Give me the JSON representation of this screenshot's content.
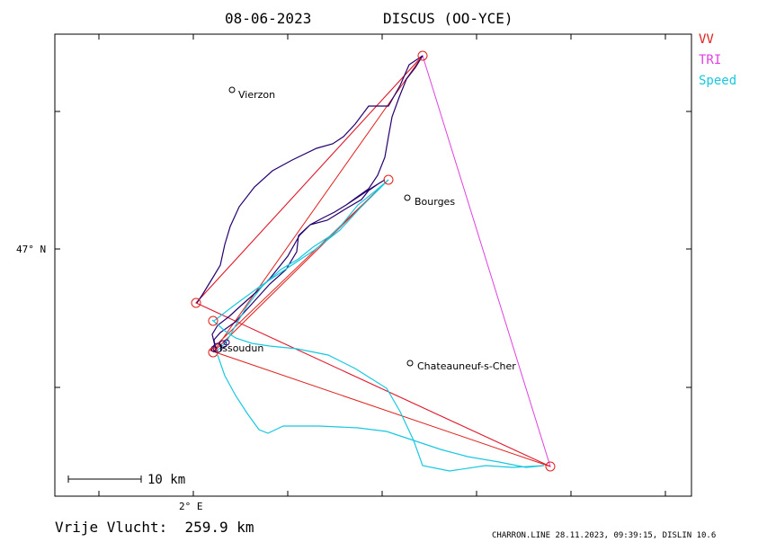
{
  "header": {
    "date": "08-06-2023",
    "aircraft": "DISCUS (OO-YCE)"
  },
  "legend": [
    {
      "label": "VV",
      "color": "#e0201b"
    },
    {
      "label": "TRI",
      "color": "#e040e0"
    },
    {
      "label": "Speed",
      "color": "#18c8e0"
    }
  ],
  "axes": {
    "lat_label": "47° N",
    "lon_label": "2° E"
  },
  "scale_bar": {
    "label": "10 km"
  },
  "places": [
    {
      "name": "Vierzon"
    },
    {
      "name": "Bourges"
    },
    {
      "name": "Issoudun"
    },
    {
      "name": "Chateauneuf-s-Cher"
    }
  ],
  "footer": {
    "distance": "Vrije Vlucht:  259.9 km",
    "credit": "CHARRON.LINE 28.11.2023, 09:39:15, DISLIN 10.6"
  },
  "colors": {
    "track": "#24006e",
    "speed_track": "#18c8e0",
    "vv_route": "#e0201b",
    "tri_route": "#e040e0"
  }
}
